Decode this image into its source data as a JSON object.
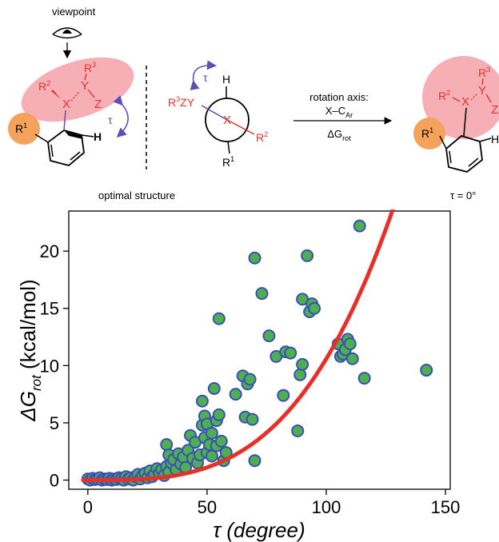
{
  "scheme": {
    "viewpoint_label": "viewpoint",
    "optimal_label": "optimal structure",
    "arrow_top_line1": "rotation axis:",
    "arrow_top_line2_main": "X–C",
    "arrow_top_line2_sub": "Ar",
    "arrow_bottom_main": "ΔG",
    "arrow_bottom_sub": "rot",
    "tau_final_label": "τ = 0°",
    "tau_symbol": "τ",
    "atom_X": "X",
    "atom_Y": "Y",
    "atom_Z": "Z",
    "atom_H": "H",
    "r1_main": "R",
    "r1_sup": "1",
    "r2_main": "R",
    "r2_sup": "2",
    "r3_main": "R",
    "r3_sup": "3",
    "newman_left_text": "ZY",
    "colors": {
      "pink": "#f4a6ad",
      "orange": "#f5a25d",
      "red": "#e8322a",
      "purple": "#5b50b5"
    }
  },
  "chart_data": {
    "type": "scatter",
    "xlabel": "τ (degree)",
    "ylabel_main": "ΔG",
    "ylabel_sub": "rot",
    "ylabel_unit": "(kcal/mol)",
    "xlim": [
      -8,
      152
    ],
    "ylim": [
      -0.8,
      23.5
    ],
    "xticks": [
      0,
      50,
      100,
      150
    ],
    "yticks": [
      0,
      5,
      10,
      15,
      20
    ],
    "marker_fill": "#4caf50",
    "marker_edge": "#3a4fb8",
    "fit_color": "#e8302a",
    "fit_curve": {
      "a": 3.2e-06,
      "power": 3.26,
      "x_range": [
        -2,
        130
      ]
    },
    "points": [
      [
        0,
        0.1
      ],
      [
        1,
        0
      ],
      [
        2,
        0.15
      ],
      [
        3,
        0.05
      ],
      [
        4,
        0.1
      ],
      [
        5,
        0.2
      ],
      [
        6,
        0
      ],
      [
        7,
        0.1
      ],
      [
        8,
        0.05
      ],
      [
        9,
        0.15
      ],
      [
        10,
        0
      ],
      [
        11,
        0.1
      ],
      [
        12,
        0.05
      ],
      [
        13,
        0.2
      ],
      [
        14,
        0.1
      ],
      [
        15,
        0
      ],
      [
        16,
        0.3
      ],
      [
        17,
        0.1
      ],
      [
        18,
        0.2
      ],
      [
        19,
        0
      ],
      [
        20,
        0.3
      ],
      [
        21,
        0.5
      ],
      [
        22,
        0.1
      ],
      [
        23,
        0.4
      ],
      [
        24,
        0.6
      ],
      [
        25,
        0.2
      ],
      [
        26,
        0.8
      ],
      [
        27,
        0.3
      ],
      [
        28,
        0.5
      ],
      [
        29,
        1.0
      ],
      [
        30,
        0.6
      ],
      [
        31,
        0.9
      ],
      [
        32,
        0.4
      ],
      [
        33,
        1.2
      ],
      [
        34,
        0.7
      ],
      [
        35,
        1.5
      ],
      [
        33,
        3.1
      ],
      [
        34,
        2.2
      ],
      [
        36,
        1.8
      ],
      [
        37,
        0.9
      ],
      [
        38,
        2.3
      ],
      [
        39,
        1.4
      ],
      [
        40,
        2.0
      ],
      [
        41,
        1.1
      ],
      [
        42,
        2.6
      ],
      [
        43,
        3.9
      ],
      [
        44,
        1.9
      ],
      [
        45,
        3.3
      ],
      [
        46,
        1.5
      ],
      [
        47,
        2.2
      ],
      [
        48,
        4.8
      ],
      [
        48,
        6.9
      ],
      [
        49,
        3.7
      ],
      [
        49,
        5.6
      ],
      [
        50,
        4.9
      ],
      [
        50,
        2.4
      ],
      [
        51,
        3.1
      ],
      [
        52,
        4.1
      ],
      [
        52,
        2.1
      ],
      [
        53,
        8.0
      ],
      [
        54,
        3.0
      ],
      [
        54,
        5.2
      ],
      [
        55,
        14.1
      ],
      [
        55,
        5.7
      ],
      [
        56,
        3.4
      ],
      [
        57,
        1.7
      ],
      [
        58,
        2.4
      ],
      [
        62,
        7.5
      ],
      [
        65,
        9.1
      ],
      [
        66,
        5.5
      ],
      [
        67,
        8.4
      ],
      [
        68,
        8.8
      ],
      [
        69,
        5.3
      ],
      [
        70,
        1.7
      ],
      [
        70,
        19.4
      ],
      [
        73,
        16.3
      ],
      [
        76,
        12.6
      ],
      [
        79,
        10.8
      ],
      [
        82,
        7.4
      ],
      [
        83,
        11.2
      ],
      [
        85,
        11.1
      ],
      [
        88,
        4.3
      ],
      [
        89,
        9.2
      ],
      [
        90,
        15.8
      ],
      [
        90,
        10.1
      ],
      [
        92,
        19.6
      ],
      [
        93,
        14.7
      ],
      [
        94,
        15.4
      ],
      [
        95,
        15.0
      ],
      [
        105,
        11.9
      ],
      [
        106,
        10.8
      ],
      [
        107,
        11.0
      ],
      [
        108,
        11.4
      ],
      [
        109,
        12.3
      ],
      [
        110,
        11.9
      ],
      [
        111,
        10.6
      ],
      [
        114,
        22.2
      ],
      [
        116,
        8.9
      ],
      [
        142,
        9.6
      ]
    ]
  }
}
